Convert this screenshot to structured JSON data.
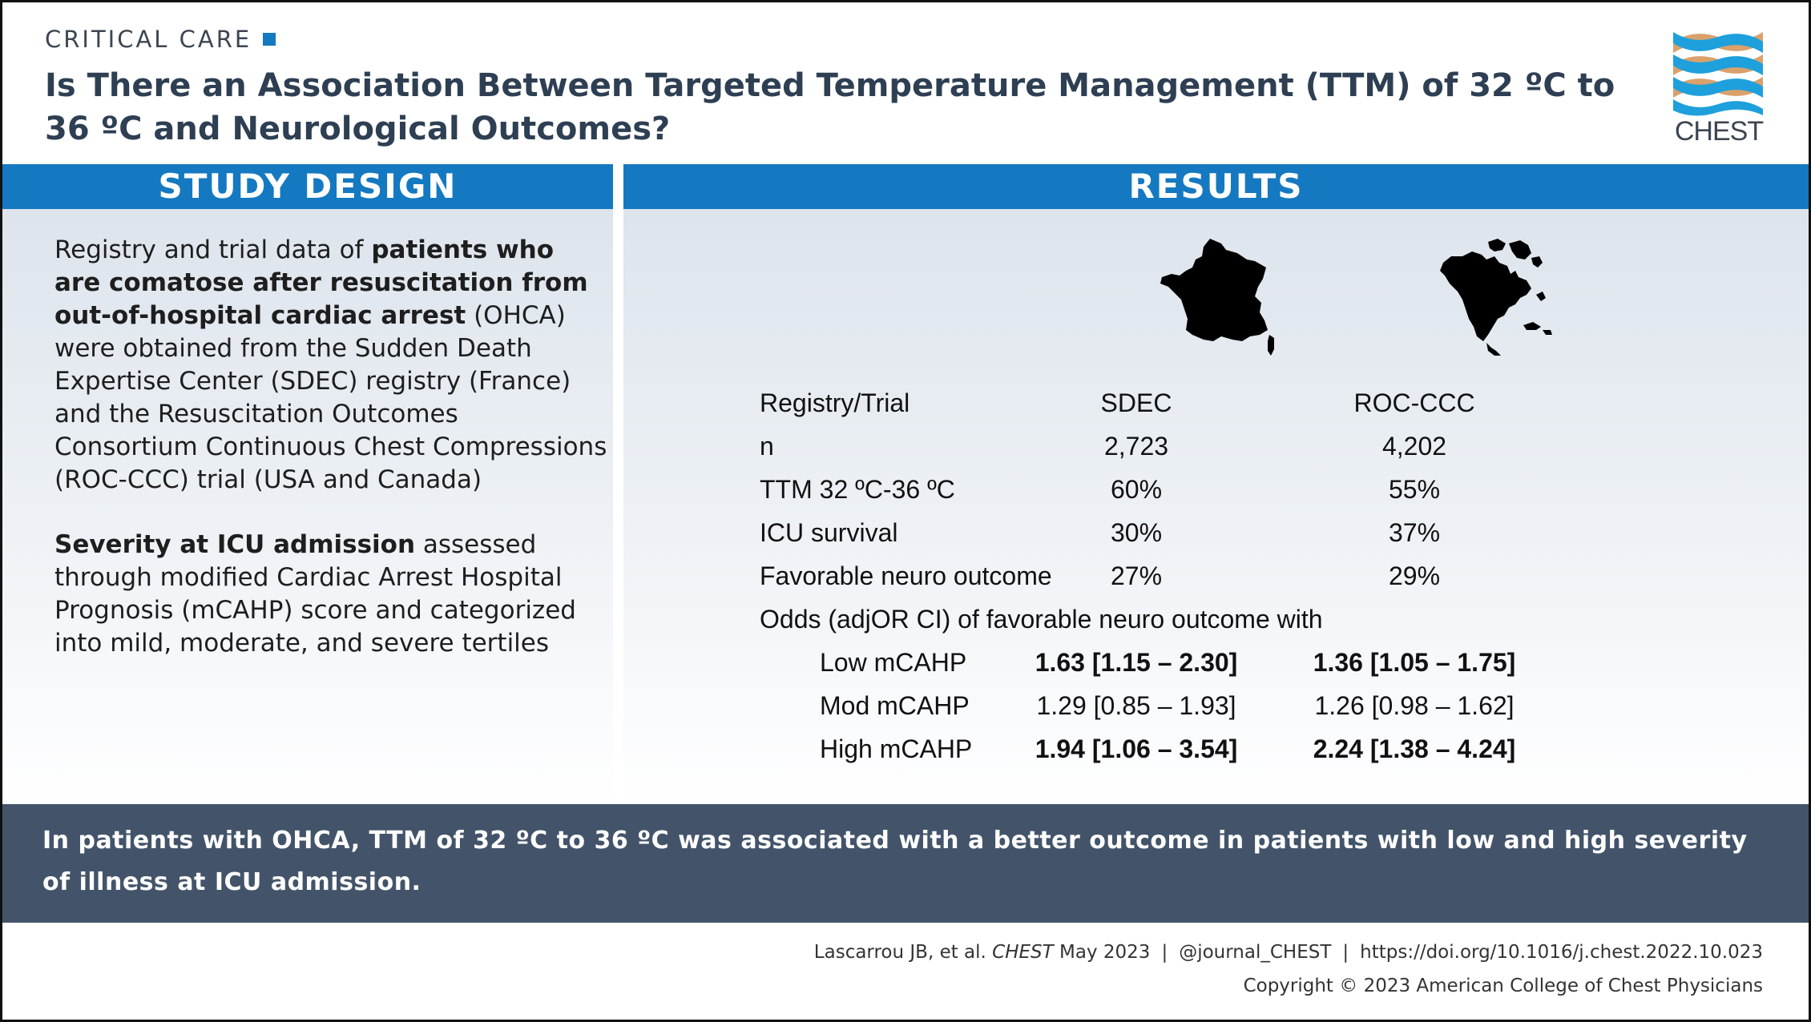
{
  "header": {
    "category": "CRITICAL CARE",
    "title": "Is There an Association Between Targeted Temperature Management (TTM) of 32 ºC to 36 ºC and Neurological Outcomes?",
    "logo_text": "CHEST"
  },
  "colors": {
    "accent_blue": "#1479c1",
    "title_navy": "#2e3f53",
    "conclusion_bg": "#43546a",
    "logo_blue": "#1ea0dc",
    "logo_tan": "#d9a16c"
  },
  "study_design": {
    "heading": "STUDY DESIGN",
    "p1": {
      "pre": "Registry and trial data of ",
      "bold": "patients who are comatose after resuscitation from out-of-hospital cardiac arrest",
      "post": " (OHCA) were obtained from the Sudden Death Expertise Center (SDEC) registry (France) and the Resuscitation Outcomes Consortium Continuous Chest Compressions (ROC-CCC) trial (USA and Canada)"
    },
    "p2": {
      "bold": "Severity at ICU admission",
      "post": " assessed through modified Cardiac Arrest Hospital Prognosis (mCAHP) score and categorized into mild, moderate, and severe tertiles"
    }
  },
  "results": {
    "heading": "RESULTS",
    "icons": [
      "france-map-icon",
      "north-america-map-icon"
    ],
    "rows": [
      {
        "label": "Registry/Trial",
        "sdec": "SDEC",
        "roc": "ROC-CCC"
      },
      {
        "label": "n",
        "sdec": "2,723",
        "roc": "4,202"
      },
      {
        "label": "TTM 32 ºC-36 ºC",
        "sdec": "60%",
        "roc": "55%"
      },
      {
        "label": "ICU survival",
        "sdec": "30%",
        "roc": "37%"
      },
      {
        "label": "Favorable neuro outcome",
        "sdec": "27%",
        "roc": "29%"
      },
      {
        "label": "Odds (adjOR CI) of favorable neuro outcome with",
        "sdec": "",
        "roc": ""
      },
      {
        "label": "Low mCAHP",
        "sdec": "1.63 [1.15 – 2.30]",
        "roc": "1.36 [1.05 – 1.75]"
      },
      {
        "label": "Mod mCAHP",
        "sdec": "1.29 [0.85 – 1.93]",
        "roc": "1.26 [0.98 – 1.62]"
      },
      {
        "label": "High mCAHP",
        "sdec": "1.94 [1.06 – 3.54]",
        "roc": "2.24 [1.38 – 4.24]"
      }
    ]
  },
  "conclusion": "In patients with OHCA, TTM of 32 ºC to 36 ºC was associated with a better outcome in patients with low and high severity of illness at ICU admission.",
  "footer": {
    "citation_authors": "Lascarrou JB, et al. ",
    "citation_journal": "CHEST",
    "citation_date": " May 2023",
    "separator": "|",
    "handle": "@journal_CHEST",
    "doi": "https://doi.org/10.1016/j.chest.2022.10.023",
    "copyright": "Copyright © 2023 American College of Chest Physicians"
  }
}
